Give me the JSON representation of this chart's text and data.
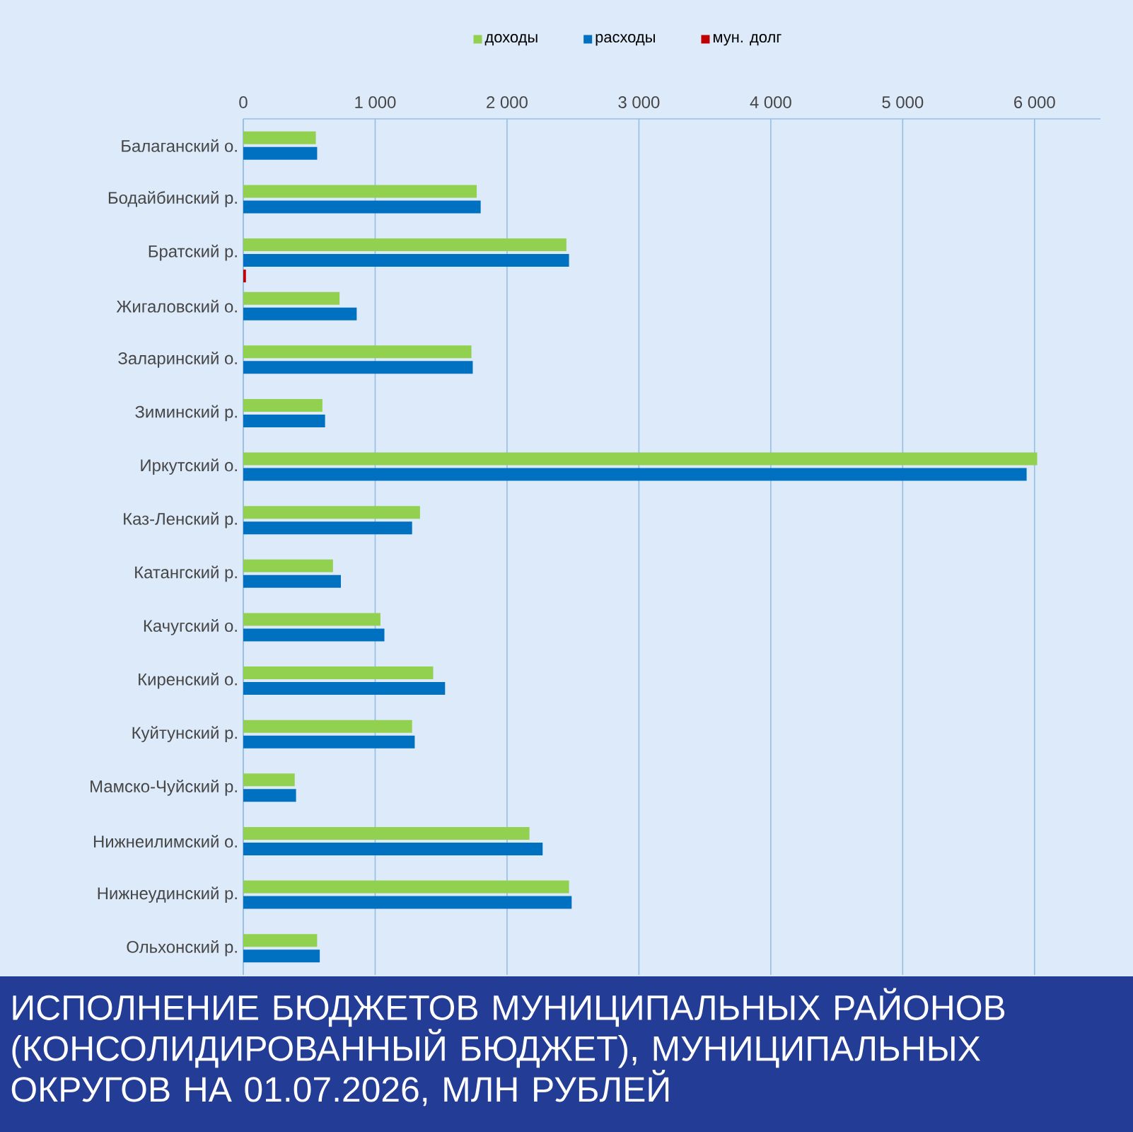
{
  "chart_data": {
    "type": "bar",
    "orientation": "horizontal",
    "title": "ИСПОЛНЕНИЕ БЮДЖЕТОВ МУНИЦИПАЛЬНЫХ РАЙОНОВ (КОНСОЛИДИРОВАННЫЙ БЮДЖЕТ), МУНИЦИПАЛЬНЫХ ОКРУГОВ НА 01.07.2026, МЛН РУБЛЕЙ",
    "categories": [
      "Балаганский о.",
      "Бодайбинский р.",
      "Братский р.",
      "Жигаловский о.",
      "Заларинский о.",
      "Зиминский р.",
      "Иркутский о.",
      "Каз-Ленский р.",
      "Катангский р.",
      "Качугский о.",
      "Киренский о.",
      "Куйтунский р.",
      "Мамско-Чуйский р.",
      "Нижнеилимский о.",
      "Нижнеудинский р.",
      "Ольхонский р."
    ],
    "series": [
      {
        "name": "доходы",
        "color": "#92d050",
        "values": [
          550,
          1770,
          2450,
          730,
          1730,
          600,
          6020,
          1340,
          680,
          1040,
          1440,
          1280,
          390,
          2170,
          2470,
          560
        ]
      },
      {
        "name": "расходы",
        "color": "#0070c0",
        "values": [
          560,
          1800,
          2470,
          860,
          1740,
          620,
          5940,
          1280,
          740,
          1070,
          1530,
          1300,
          400,
          2270,
          2490,
          580
        ]
      },
      {
        "name": "мун. долг",
        "color": "#c00000",
        "values": [
          null,
          null,
          20,
          null,
          null,
          null,
          null,
          null,
          null,
          null,
          null,
          null,
          null,
          null,
          null,
          null
        ]
      }
    ],
    "xlim": [
      0,
      6500
    ],
    "xticks": [
      {
        "value": 0,
        "label": "0"
      },
      {
        "value": 1000,
        "label": "1 000"
      },
      {
        "value": 2000,
        "label": "2 000"
      },
      {
        "value": 3000,
        "label": "3 000"
      },
      {
        "value": 4000,
        "label": "4 000"
      },
      {
        "value": 5000,
        "label": "5 000"
      },
      {
        "value": 6000,
        "label": "6 000"
      }
    ],
    "grid": "x",
    "legend": "top"
  }
}
